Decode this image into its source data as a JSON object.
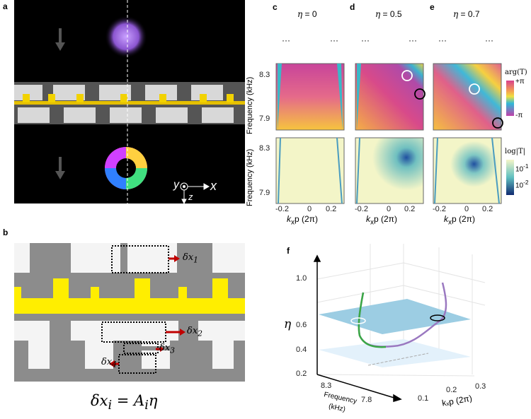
{
  "panels": {
    "a": {
      "label": "a",
      "axis_y": "y",
      "axis_x": "x",
      "axis_z": "z"
    },
    "b": {
      "label": "b",
      "dx1": "δx",
      "dx1_sub": "1",
      "dx2": "δx",
      "dx2_sub": "2",
      "dx3": "δx",
      "dx3_sub": "3",
      "dx4": "δx",
      "dx4_sub": "4",
      "formula": "δx",
      "formula_sub": "i",
      "formula_eq": " = A",
      "formula_sub2": "i",
      "formula_end": "η"
    },
    "c": {
      "label": "c",
      "title_sym": "η",
      "title_val": " = 0"
    },
    "d": {
      "label": "d",
      "title_sym": "η",
      "title_val": " = 0.5"
    },
    "e": {
      "label": "e",
      "title_sym": "η",
      "title_val": " = 0.7"
    },
    "maps": {
      "ylabel": "Frequency (kHz)",
      "yticks": [
        "8.3",
        "7.9"
      ],
      "xticks": [
        "-0.2",
        "0",
        "0.2"
      ],
      "xlabel_k": "k",
      "xlabel_sub": "x",
      "xlabel_rest": "p (2π)",
      "ellipsis": "···"
    },
    "colorbars": {
      "phase_title": "arg(T)",
      "phase_top": "+π",
      "phase_bottom": "-π",
      "mag_title": "log|T|",
      "mag_top": "10",
      "mag_top_exp": "-1",
      "mag_bottom": "10",
      "mag_bottom_exp": "-2"
    },
    "f": {
      "label": "f",
      "eta_label": "η",
      "eta_ticks": [
        "1.0",
        "0.6",
        "0.4",
        "0.2"
      ],
      "freq_ticks": [
        "8.3",
        "7.8"
      ],
      "freq_label1": "Frequency",
      "freq_label2": "(kHz)",
      "k_ticks": [
        "0.1",
        "0.2",
        "0.3"
      ],
      "k_label": "kₓp (2π)"
    }
  },
  "colors": {
    "yellow": "#f5e600",
    "gray": "#8c8c8c",
    "light": "#f2f2f2",
    "arrow_red": "#c00000",
    "green": "#3aa845",
    "purple": "#9a78c0",
    "plane": "#9ccde3"
  }
}
